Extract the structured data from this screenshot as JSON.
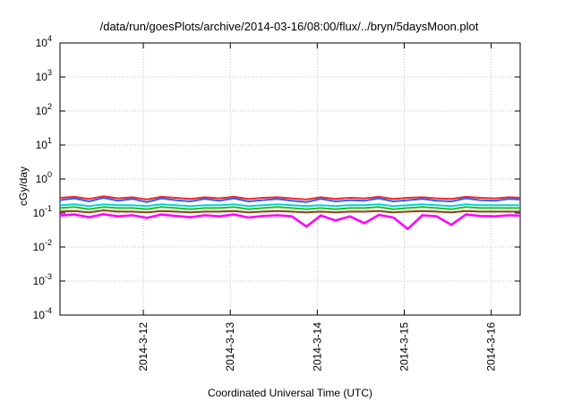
{
  "chart_data": {
    "type": "line",
    "title": "/data/run/goesPlots/archive/2014-03-16/08:00/flux/../bryn/5daysMoon.plot",
    "xlabel": "Coordinated Universal Time (UTC)",
    "ylabel": "cGy/day",
    "yscale": "log",
    "ylim": [
      0.0001,
      10000
    ],
    "y_ticks": [
      {
        "base": "10",
        "exp": "-4",
        "value": 0.0001
      },
      {
        "base": "10",
        "exp": "-3",
        "value": 0.001
      },
      {
        "base": "10",
        "exp": "-2",
        "value": 0.01
      },
      {
        "base": "10",
        "exp": "-1",
        "value": 0.1
      },
      {
        "base": "10",
        "exp": "0",
        "value": 1
      },
      {
        "base": "10",
        "exp": "1",
        "value": 10
      },
      {
        "base": "10",
        "exp": "2",
        "value": 100
      },
      {
        "base": "10",
        "exp": "3",
        "value": 1000
      },
      {
        "base": "10",
        "exp": "4",
        "value": 10000
      }
    ],
    "xlim": [
      "2014-03-11T01:00",
      "2014-03-16T08:00"
    ],
    "x_ticks": [
      "2014-3-12",
      "2014-3-13",
      "2014-3-14",
      "2014-3-15",
      "2014-3-16"
    ],
    "grid": true,
    "x": [
      "2014-03-11T01:00",
      "2014-03-11T05:00",
      "2014-03-11T09:00",
      "2014-03-11T13:00",
      "2014-03-11T17:00",
      "2014-03-11T21:00",
      "2014-03-12T01:00",
      "2014-03-12T05:00",
      "2014-03-12T09:00",
      "2014-03-12T13:00",
      "2014-03-12T17:00",
      "2014-03-12T21:00",
      "2014-03-13T01:00",
      "2014-03-13T05:00",
      "2014-03-13T09:00",
      "2014-03-13T13:00",
      "2014-03-13T17:00",
      "2014-03-13T21:00",
      "2014-03-14T01:00",
      "2014-03-14T05:00",
      "2014-03-14T09:00",
      "2014-03-14T13:00",
      "2014-03-14T17:00",
      "2014-03-14T21:00",
      "2014-03-15T01:00",
      "2014-03-15T05:00",
      "2014-03-15T09:00",
      "2014-03-15T13:00",
      "2014-03-15T17:00",
      "2014-03-15T21:00",
      "2014-03-16T01:00",
      "2014-03-16T05:00",
      "2014-03-16T08:00"
    ],
    "series": [
      {
        "color": "#ff2222",
        "values": [
          0.28,
          0.3,
          0.26,
          0.31,
          0.27,
          0.29,
          0.25,
          0.3,
          0.28,
          0.26,
          0.29,
          0.27,
          0.3,
          0.26,
          0.28,
          0.29,
          0.27,
          0.25,
          0.29,
          0.26,
          0.28,
          0.27,
          0.3,
          0.26,
          0.28,
          0.29,
          0.27,
          0.26,
          0.3,
          0.28,
          0.27,
          0.29,
          0.28
        ]
      },
      {
        "color": "#2266ff",
        "values": [
          0.24,
          0.27,
          0.22,
          0.28,
          0.23,
          0.26,
          0.21,
          0.27,
          0.24,
          0.22,
          0.26,
          0.23,
          0.27,
          0.22,
          0.24,
          0.26,
          0.23,
          0.21,
          0.26,
          0.22,
          0.24,
          0.23,
          0.27,
          0.22,
          0.24,
          0.26,
          0.23,
          0.22,
          0.27,
          0.24,
          0.23,
          0.26,
          0.25
        ]
      },
      {
        "color": "#00d4d4",
        "values": [
          0.17,
          0.18,
          0.16,
          0.18,
          0.17,
          0.17,
          0.16,
          0.18,
          0.17,
          0.16,
          0.17,
          0.17,
          0.18,
          0.16,
          0.17,
          0.18,
          0.17,
          0.16,
          0.17,
          0.16,
          0.17,
          0.17,
          0.18,
          0.16,
          0.17,
          0.18,
          0.17,
          0.16,
          0.18,
          0.17,
          0.17,
          0.17,
          0.17
        ]
      },
      {
        "color": "#22c022",
        "values": [
          0.14,
          0.15,
          0.13,
          0.15,
          0.14,
          0.14,
          0.13,
          0.15,
          0.14,
          0.13,
          0.14,
          0.14,
          0.15,
          0.13,
          0.14,
          0.15,
          0.14,
          0.13,
          0.14,
          0.13,
          0.14,
          0.14,
          0.15,
          0.13,
          0.14,
          0.15,
          0.14,
          0.13,
          0.15,
          0.14,
          0.14,
          0.14,
          0.14
        ]
      },
      {
        "color": "#8b4513",
        "values": [
          0.11,
          0.115,
          0.105,
          0.12,
          0.11,
          0.11,
          0.105,
          0.115,
          0.11,
          0.105,
          0.11,
          0.11,
          0.115,
          0.105,
          0.11,
          0.115,
          0.11,
          0.105,
          0.11,
          0.105,
          0.11,
          0.11,
          0.115,
          0.105,
          0.11,
          0.115,
          0.11,
          0.105,
          0.115,
          0.11,
          0.11,
          0.11,
          0.11
        ]
      },
      {
        "color": "#ff00ff",
        "values": [
          0.085,
          0.09,
          0.075,
          0.092,
          0.08,
          0.086,
          0.072,
          0.09,
          0.082,
          0.075,
          0.086,
          0.08,
          0.09,
          0.074,
          0.082,
          0.086,
          0.08,
          0.04,
          0.085,
          0.06,
          0.08,
          0.05,
          0.088,
          0.074,
          0.034,
          0.086,
          0.08,
          0.045,
          0.09,
          0.082,
          0.08,
          0.086,
          0.084
        ]
      }
    ]
  }
}
